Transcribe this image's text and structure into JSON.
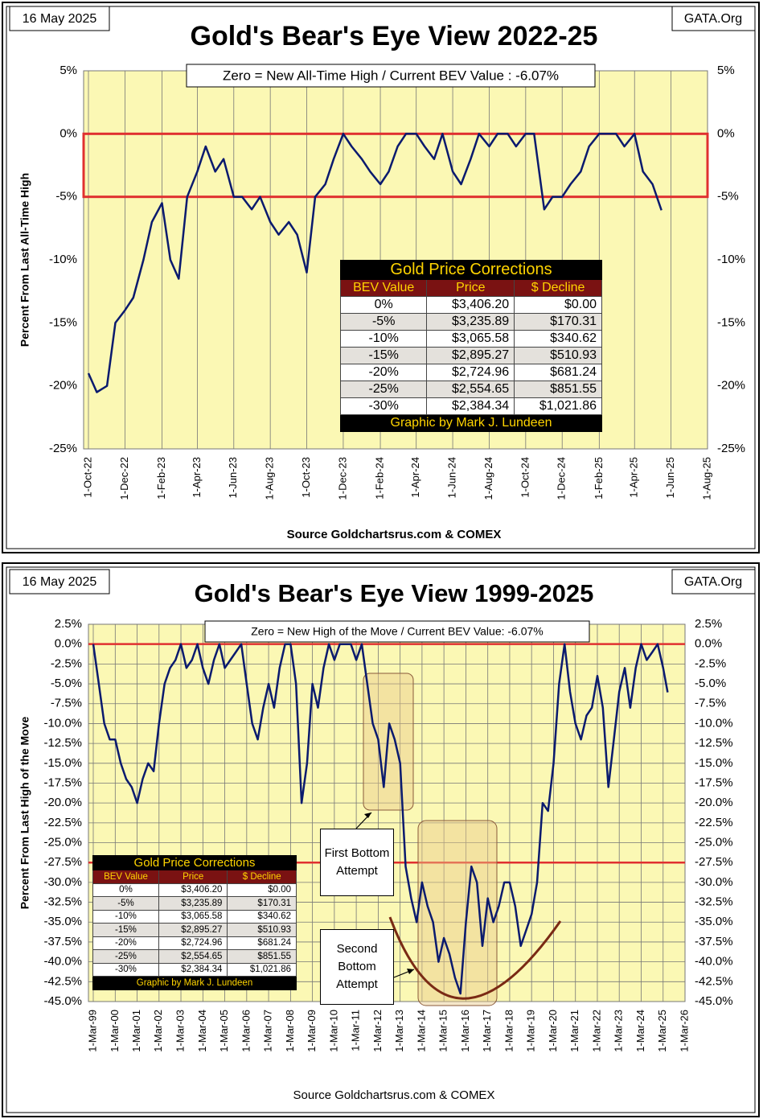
{
  "chart_data": [
    {
      "type": "line",
      "title": "Gold's Bear's Eye View 2022-25",
      "date": "16 May 2025",
      "watermark": "GATA.Org",
      "subtitle": "Zero = New All-Time High / Current  BEV Value : -6.07%",
      "ylabel": "Percent  From Last  All-Time High",
      "source": "Source Goldchartsrus.com & COMEX",
      "color": "#0a1a6e",
      "xgrid": true,
      "ygrid": false,
      "band": [
        -5,
        0
      ],
      "band_color": "#e03030",
      "x": [
        "1-Oct-22",
        "15-Oct-22",
        "1-Nov-22",
        "15-Nov-22",
        "1-Dec-22",
        "15-Dec-22",
        "1-Jan-23",
        "15-Jan-23",
        "1-Feb-23",
        "15-Feb-23",
        "1-Mar-23",
        "15-Mar-23",
        "1-Apr-23",
        "15-Apr-23",
        "1-May-23",
        "15-May-23",
        "1-Jun-23",
        "15-Jun-23",
        "1-Jul-23",
        "15-Jul-23",
        "1-Aug-23",
        "15-Aug-23",
        "1-Sep-23",
        "15-Sep-23",
        "1-Oct-23",
        "15-Oct-23",
        "1-Nov-23",
        "15-Nov-23",
        "1-Dec-23",
        "15-Dec-23",
        "1-Jan-24",
        "15-Jan-24",
        "1-Feb-24",
        "15-Feb-24",
        "1-Mar-24",
        "15-Mar-24",
        "1-Apr-24",
        "15-Apr-24",
        "1-May-24",
        "15-May-24",
        "1-Jun-24",
        "15-Jun-24",
        "1-Jul-24",
        "15-Jul-24",
        "1-Aug-24",
        "15-Aug-24",
        "1-Sep-24",
        "15-Sep-24",
        "1-Oct-24",
        "15-Oct-24",
        "1-Nov-24",
        "15-Nov-24",
        "1-Dec-24",
        "15-Dec-24",
        "1-Jan-25",
        "15-Jan-25",
        "1-Feb-25",
        "15-Feb-25",
        "1-Mar-25",
        "15-Mar-25",
        "1-Apr-25",
        "15-Apr-25",
        "1-May-25",
        "16-May-25"
      ],
      "values": [
        -19,
        -20.5,
        -20,
        -15,
        -14,
        -13,
        -10,
        -7,
        -5.5,
        -10,
        -11.5,
        -5,
        -3,
        -1,
        -3,
        -2,
        -5,
        -5,
        -6,
        -5,
        -7,
        -8,
        -7,
        -8,
        -11,
        -5,
        -4,
        -2,
        0,
        -1,
        -2,
        -3,
        -4,
        -3,
        -1,
        0,
        0,
        -1,
        -2,
        0,
        -3,
        -4,
        -2,
        0,
        -1,
        0,
        0,
        -1,
        0,
        0,
        -6,
        -5,
        -5,
        -4,
        -3,
        -1,
        0,
        0,
        0,
        -1,
        0,
        -3,
        -4,
        -6.07
      ],
      "xlim": [
        "1-Oct-22",
        "1-Aug-25"
      ],
      "xticks": [
        "1-Oct-22",
        "1-Dec-22",
        "1-Feb-23",
        "1-Apr-23",
        "1-Jun-23",
        "1-Aug-23",
        "1-Oct-23",
        "1-Dec-23",
        "1-Feb-24",
        "1-Apr-24",
        "1-Jun-24",
        "1-Aug-24",
        "1-Oct-24",
        "1-Dec-24",
        "1-Feb-25",
        "1-Apr-25",
        "1-Jun-25",
        "1-Aug-25"
      ],
      "ylim": [
        -25,
        5
      ],
      "yticks": [
        {
          "value": 5,
          "label": "5%"
        },
        {
          "value": 0,
          "label": "0%"
        },
        {
          "value": -5,
          "label": "-5%"
        },
        {
          "value": -10,
          "label": "-10%"
        },
        {
          "value": -15,
          "label": "-15%"
        },
        {
          "value": -20,
          "label": "-20%"
        },
        {
          "value": -25,
          "label": "-25%"
        }
      ],
      "table": {
        "title": "Gold Price Corrections",
        "columns": [
          "BEV Value",
          "Price",
          "$ Decline"
        ],
        "rows": [
          [
            "0%",
            "$3,406.20",
            "$0.00"
          ],
          [
            "-5%",
            "$3,235.89",
            "$170.31"
          ],
          [
            "-10%",
            "$3,065.58",
            "$340.62"
          ],
          [
            "-15%",
            "$2,895.27",
            "$510.93"
          ],
          [
            "-20%",
            "$2,724.96",
            "$681.24"
          ],
          [
            "-25%",
            "$2,554.65",
            "$851.55"
          ],
          [
            "-30%",
            "$2,384.34",
            "$1,021.86"
          ]
        ],
        "footer": "Graphic by Mark J. Lundeen"
      }
    },
    {
      "type": "line",
      "title": "Gold's Bear's Eye View 1999-2025",
      "date": "16 May 2025",
      "watermark": "GATA.Org",
      "subtitle": "Zero = New High of the Move / Current BEV Value:  -6.07%",
      "ylabel": "Percent From Last High of the Move",
      "source": "Source Goldchartsrus.com  & COMEX",
      "color": "#0a1a6e",
      "xgrid": true,
      "ygrid": true,
      "hlines": [
        0,
        -27.5
      ],
      "hline_color": "#e03030",
      "annotations": [
        "First Bottom Attempt",
        "Second Bottom Attempt"
      ],
      "x": [
        "1-Mar-99",
        "1-Jun-99",
        "1-Sep-99",
        "1-Dec-99",
        "1-Mar-00",
        "1-Jun-00",
        "1-Sep-00",
        "1-Dec-00",
        "1-Mar-01",
        "1-Jun-01",
        "1-Sep-01",
        "1-Dec-01",
        "1-Mar-02",
        "1-Jun-02",
        "1-Sep-02",
        "1-Dec-02",
        "1-Mar-03",
        "1-Jun-03",
        "1-Sep-03",
        "1-Dec-03",
        "1-Mar-04",
        "1-Jun-04",
        "1-Sep-04",
        "1-Dec-04",
        "1-Mar-05",
        "1-Jun-05",
        "1-Sep-05",
        "1-Dec-05",
        "1-Mar-06",
        "1-Jun-06",
        "1-Sep-06",
        "1-Dec-06",
        "1-Mar-07",
        "1-Jun-07",
        "1-Sep-07",
        "1-Dec-07",
        "1-Mar-08",
        "1-Jun-08",
        "1-Sep-08",
        "1-Dec-08",
        "1-Mar-09",
        "1-Jun-09",
        "1-Sep-09",
        "1-Dec-09",
        "1-Mar-10",
        "1-Jun-10",
        "1-Sep-10",
        "1-Dec-10",
        "1-Mar-11",
        "1-Jun-11",
        "1-Sep-11",
        "1-Dec-11",
        "1-Mar-12",
        "1-Jun-12",
        "1-Sep-12",
        "1-Dec-12",
        "1-Mar-13",
        "1-Jun-13",
        "1-Sep-13",
        "1-Dec-13",
        "1-Mar-14",
        "1-Jun-14",
        "1-Sep-14",
        "1-Dec-14",
        "1-Mar-15",
        "1-Jun-15",
        "1-Sep-15",
        "1-Dec-15",
        "1-Mar-16",
        "1-Jun-16",
        "1-Sep-16",
        "1-Dec-16",
        "1-Mar-17",
        "1-Jun-17",
        "1-Sep-17",
        "1-Dec-17",
        "1-Mar-18",
        "1-Jun-18",
        "1-Sep-18",
        "1-Dec-18",
        "1-Mar-19",
        "1-Jun-19",
        "1-Sep-19",
        "1-Dec-19",
        "1-Mar-20",
        "1-Jun-20",
        "1-Sep-20",
        "1-Dec-20",
        "1-Mar-21",
        "1-Jun-21",
        "1-Sep-21",
        "1-Dec-21",
        "1-Mar-22",
        "1-Jun-22",
        "1-Sep-22",
        "1-Dec-22",
        "1-Mar-23",
        "1-Jun-23",
        "1-Sep-23",
        "1-Dec-23",
        "1-Mar-24",
        "1-Jun-24",
        "1-Sep-24",
        "1-Dec-24",
        "1-Mar-25",
        "16-May-25"
      ],
      "values": [
        0,
        -5,
        -10,
        -12,
        -12,
        -15,
        -17,
        -18,
        -20,
        -17,
        -15,
        -16,
        -10,
        -5,
        -3,
        -2,
        0,
        -3,
        -2,
        0,
        -3,
        -5,
        -2,
        0,
        -3,
        -2,
        -1,
        0,
        -5,
        -10,
        -12,
        -8,
        -5,
        -8,
        -3,
        0,
        0,
        -5,
        -20,
        -15,
        -5,
        -8,
        -3,
        0,
        -2,
        0,
        0,
        0,
        -2,
        0,
        -5,
        -10,
        -12,
        -18,
        -10,
        -12,
        -15,
        -28,
        -32,
        -35,
        -30,
        -33,
        -35,
        -40,
        -37,
        -39,
        -42,
        -44,
        -35,
        -28,
        -30,
        -38,
        -32,
        -35,
        -33,
        -30,
        -30,
        -33,
        -38,
        -36,
        -34,
        -30,
        -20,
        -21,
        -15,
        -5,
        0,
        -6,
        -10,
        -12,
        -9,
        -8,
        -4,
        -8,
        -18,
        -12,
        -6,
        -3,
        -8,
        -3,
        0,
        -2,
        -1,
        0,
        -3,
        -6.07
      ],
      "xlim": [
        "1-Mar-99",
        "1-Mar-26"
      ],
      "xticks": [
        "1-Mar-99",
        "1-Mar-00",
        "1-Mar-01",
        "1-Mar-02",
        "1-Mar-03",
        "1-Mar-04",
        "1-Mar-05",
        "1-Mar-06",
        "1-Mar-07",
        "1-Mar-08",
        "1-Mar-09",
        "1-Mar-10",
        "1-Mar-11",
        "1-Mar-12",
        "1-Mar-13",
        "1-Mar-14",
        "1-Mar-15",
        "1-Mar-16",
        "1-Mar-17",
        "1-Mar-18",
        "1-Mar-19",
        "1-Mar-20",
        "1-Mar-21",
        "1-Mar-22",
        "1-Mar-23",
        "1-Mar-24",
        "1-Mar-25",
        "1-Mar-26"
      ],
      "ylim": [
        -45,
        2.5
      ],
      "yticks": [
        {
          "value": 2.5,
          "label": "2.5%"
        },
        {
          "value": 0,
          "label": "0.0%"
        },
        {
          "value": -2.5,
          "label": "-2.5%"
        },
        {
          "value": -5,
          "label": "-5.0%"
        },
        {
          "value": -7.5,
          "label": "-7.5%"
        },
        {
          "value": -10,
          "label": "-10.0%"
        },
        {
          "value": -12.5,
          "label": "-12.5%"
        },
        {
          "value": -15,
          "label": "-15.0%"
        },
        {
          "value": -17.5,
          "label": "-17.5%"
        },
        {
          "value": -20,
          "label": "-20.0%"
        },
        {
          "value": -22.5,
          "label": "-22.5%"
        },
        {
          "value": -25,
          "label": "-25.0%"
        },
        {
          "value": -27.5,
          "label": "-27.5%"
        },
        {
          "value": -30,
          "label": "-30.0%"
        },
        {
          "value": -32.5,
          "label": "-32.5%"
        },
        {
          "value": -35,
          "label": "-35.0%"
        },
        {
          "value": -37.5,
          "label": "-37.5%"
        },
        {
          "value": -40,
          "label": "-40.0%"
        },
        {
          "value": -42.5,
          "label": "-42.5%"
        },
        {
          "value": -45,
          "label": "-45.0%"
        }
      ],
      "table": {
        "title": "Gold Price Corrections",
        "columns": [
          "BEV Value",
          "Price",
          "$ Decline"
        ],
        "rows": [
          [
            "0%",
            "$3,406.20",
            "$0.00"
          ],
          [
            "-5%",
            "$3,235.89",
            "$170.31"
          ],
          [
            "-10%",
            "$3,065.58",
            "$340.62"
          ],
          [
            "-15%",
            "$2,895.27",
            "$510.93"
          ],
          [
            "-20%",
            "$2,724.96",
            "$681.24"
          ],
          [
            "-25%",
            "$2,554.65",
            "$851.55"
          ],
          [
            "-30%",
            "$2,384.34",
            "$1,021.86"
          ]
        ],
        "footer": "Graphic by Mark J. Lundeen"
      }
    }
  ]
}
